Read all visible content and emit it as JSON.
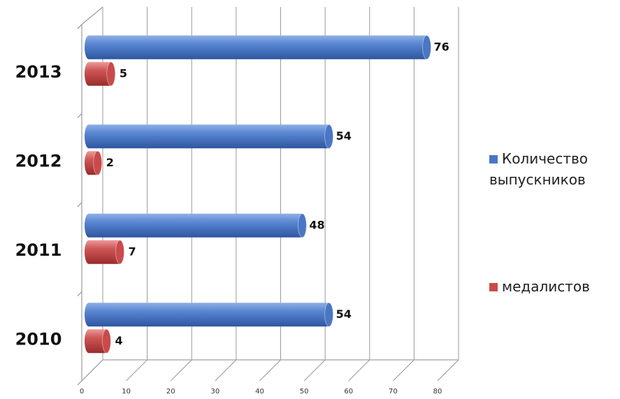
{
  "chart_data": {
    "type": "bar",
    "orientation": "horizontal",
    "categories": [
      "2010",
      "2011",
      "2012",
      "2013"
    ],
    "series": [
      {
        "name": "Количество выпускников",
        "color": "#4a76c4",
        "values": [
          54,
          48,
          54,
          76
        ]
      },
      {
        "name": "медалистов",
        "color": "#c94a4a",
        "values": [
          4,
          7,
          2,
          5
        ]
      }
    ],
    "xlim": [
      0,
      80
    ],
    "xticks": [
      0,
      10,
      20,
      30,
      40,
      50,
      60,
      70,
      80
    ],
    "grid": true
  }
}
